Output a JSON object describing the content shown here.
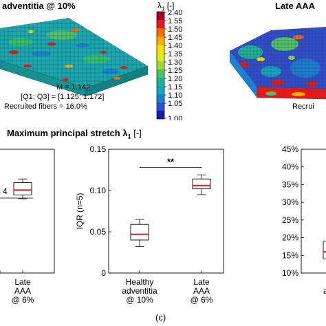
{
  "top": {
    "left_title": "adventitia @ 10%",
    "right_title": "Late AAA",
    "right_recruited": "Recrui",
    "stats": {
      "median": "M = 1.142",
      "quartiles": "[Q1; Q3] = [1.125; 1.172]",
      "recruited": "Recruited fibers = 16.0%"
    }
  },
  "colorbar": {
    "label": "λ",
    "label_sub": "1",
    "label_unit": "[-]",
    "ticks": [
      "2.40",
      "1.55",
      "1.50",
      "1.45",
      "1.40",
      "1.35",
      "1.30",
      "1.25",
      "1.20",
      "1.15",
      "1.10",
      "1.05",
      "1.00"
    ],
    "colors": [
      "#a50026",
      "#e31a1c",
      "#fb6a00",
      "#fdae00",
      "#fde000",
      "#d9f020",
      "#9bdc3c",
      "#4ec36b",
      "#1fb39a",
      "#12a7c2",
      "#1b7fd6",
      "#2f4fd0",
      "#1c1ca8"
    ]
  },
  "section_title": {
    "text": "Maximum principal stretch λ",
    "sub": "1",
    "unit": "[-]"
  },
  "panel_label": "(c)",
  "chart_data": [
    {
      "type": "box",
      "panel": "left-partial",
      "categories": [
        "",
        "Late AAA @ 6%"
      ],
      "category_lines": [
        [],
        [
          "Late",
          "AAA",
          "@ 6%"
        ]
      ],
      "annotation": "4",
      "boxes": [
        {
          "category": "Late AAA @ 6%",
          "q1": 0.63,
          "median": 0.67,
          "q3": 0.73,
          "min": 0.6,
          "max": 0.76
        }
      ],
      "ylim": [
        0,
        1
      ]
    },
    {
      "type": "box",
      "panel": "middle",
      "ylabel": "IQR (n=5)",
      "ylim": [
        0,
        0.15
      ],
      "yticks": [
        0,
        0.05,
        0.1,
        0.15
      ],
      "ytick_labels": [
        "0",
        "0.05",
        "0.10",
        "0.15"
      ],
      "categories": [
        "Healthy adventitia @ 10%",
        "Late AAA @ 6%"
      ],
      "category_lines": [
        [
          "Healthy",
          "adventitia",
          "@ 10%"
        ],
        [
          "Late",
          "AAA",
          "@ 6%"
        ]
      ],
      "boxes": [
        {
          "category": "Healthy adventitia @ 10%",
          "min": 0.032,
          "q1": 0.04,
          "median": 0.047,
          "q3": 0.059,
          "max": 0.065
        },
        {
          "category": "Late AAA @ 6%",
          "min": 0.095,
          "q1": 0.102,
          "median": 0.106,
          "q3": 0.114,
          "max": 0.119
        }
      ],
      "significance": {
        "label": "**",
        "y": 0.128
      }
    },
    {
      "type": "box",
      "panel": "right-partial",
      "ylim": [
        0.1,
        0.45
      ],
      "yticks": [
        0.1,
        0.15,
        0.2,
        0.25,
        0.3,
        0.35,
        0.4,
        0.45
      ],
      "ytick_labels": [
        "10%",
        "15%",
        "20%",
        "25%",
        "30%",
        "35%",
        "40%",
        "45%"
      ],
      "categories": [
        "Healthy adventitia"
      ],
      "category_lines": [
        [
          "He",
          "adve",
          "@"
        ]
      ],
      "boxes": [
        {
          "category": "Healthy adventitia",
          "min": 0.13,
          "q1": 0.14,
          "median": 0.16,
          "q3": 0.19,
          "max": 0.21
        }
      ]
    }
  ]
}
